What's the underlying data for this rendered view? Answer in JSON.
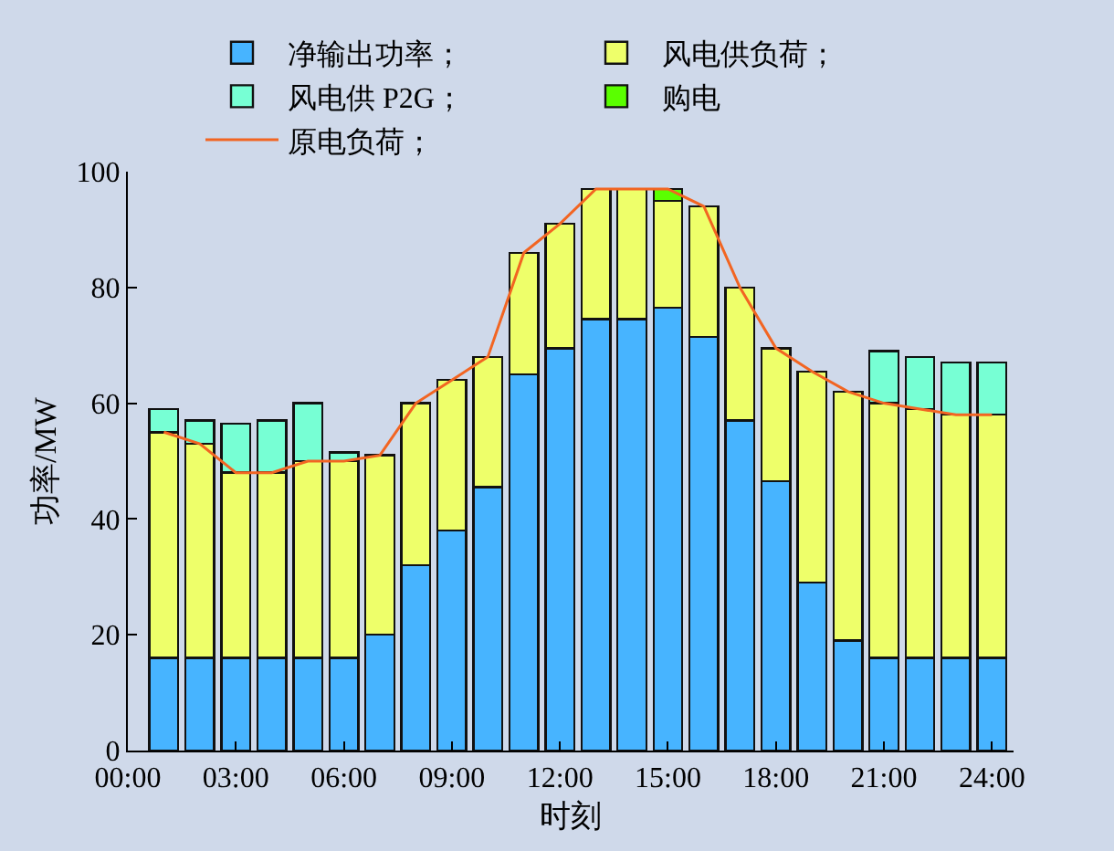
{
  "chart_data": {
    "type": "bar",
    "stacked": true,
    "xlabel": "时刻",
    "ylabel": "功率/MW",
    "x": [
      1,
      2,
      3,
      4,
      5,
      6,
      7,
      8,
      9,
      10,
      11,
      12,
      13,
      14,
      15,
      16,
      17,
      18,
      19,
      20,
      21,
      22,
      23,
      24
    ],
    "series": [
      {
        "name": "净输出功率；",
        "color": "#47b4ff",
        "values": [
          16,
          16,
          16,
          16,
          16,
          16,
          20,
          32,
          38,
          45.5,
          65,
          69.5,
          74.5,
          74.5,
          76.5,
          71.5,
          57,
          46.5,
          29,
          19,
          16,
          16,
          16,
          16
        ]
      },
      {
        "name": "风电供负荷；",
        "color": "#eeff6a",
        "values": [
          39,
          37,
          32,
          32,
          34,
          34,
          31,
          28,
          26,
          22.5,
          21,
          21.5,
          22.5,
          22.5,
          18.5,
          22.5,
          23,
          23,
          36.5,
          43,
          44,
          43,
          42,
          42
        ]
      },
      {
        "name": "风电供 P2G；",
        "color": "#77ffd4",
        "values": [
          4,
          4,
          8.5,
          9,
          10,
          1.5,
          null,
          null,
          null,
          null,
          null,
          null,
          null,
          null,
          null,
          null,
          null,
          null,
          null,
          null,
          9,
          9,
          9,
          9
        ]
      },
      {
        "name": "购电",
        "color": "#5aff00",
        "values": [
          null,
          null,
          null,
          null,
          null,
          null,
          null,
          null,
          null,
          null,
          null,
          null,
          null,
          null,
          2,
          null,
          null,
          null,
          null,
          null,
          null,
          null,
          null,
          null
        ]
      },
      {
        "name": "原电负荷；",
        "type": "line",
        "color": "#f26522",
        "values": [
          55,
          53,
          48,
          48,
          50,
          50,
          51,
          60,
          64,
          68,
          86,
          91,
          97,
          97,
          97,
          94,
          80,
          69.5,
          65.5,
          62,
          60,
          59,
          58,
          58
        ]
      }
    ],
    "xlim": [
      0,
      24.6
    ],
    "xticks": [
      {
        "value": 0,
        "label": "00:00"
      },
      {
        "value": 3,
        "label": "03:00"
      },
      {
        "value": 6,
        "label": "06:00"
      },
      {
        "value": 9,
        "label": "09:00"
      },
      {
        "value": 12,
        "label": "12:00"
      },
      {
        "value": 15,
        "label": "15:00"
      },
      {
        "value": 18,
        "label": "18:00"
      },
      {
        "value": 21,
        "label": "21:00"
      },
      {
        "value": 24,
        "label": "24:00"
      }
    ],
    "ylim": [
      0,
      100
    ],
    "yticks": [
      0,
      20,
      40,
      60,
      80,
      100
    ],
    "grid": false,
    "legend": "top",
    "marker": "none",
    "line_style": "solid"
  }
}
